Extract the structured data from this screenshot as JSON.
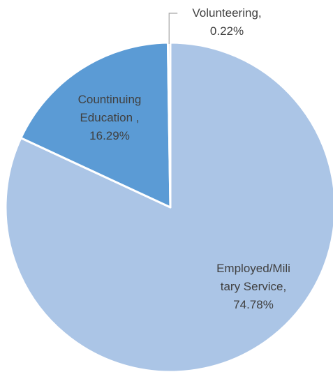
{
  "chart_data": {
    "type": "pie",
    "slices": [
      {
        "label": "Employed/Military Service",
        "value": 74.78,
        "color": "#abc5e6",
        "label_lines": [
          "Employed/Mili",
          "tary Service,",
          "74.78%"
        ]
      },
      {
        "label": "Countinuing Education",
        "value": 16.29,
        "color": "#5b9bd5",
        "label_lines": [
          "Countinuing",
          "Education ,",
          "16.29%"
        ]
      },
      {
        "label": "Volunteering",
        "value": 0.22,
        "color": "#d6dce8",
        "label_lines": [
          "Volunteering,",
          "0.22%"
        ]
      }
    ],
    "title": "",
    "legend": "none"
  }
}
